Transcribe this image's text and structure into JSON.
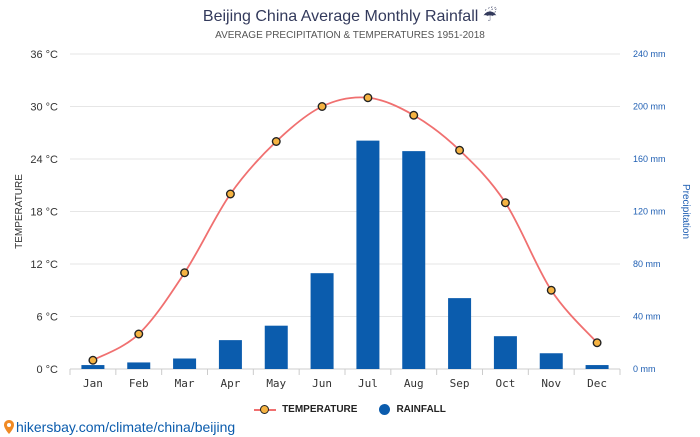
{
  "title": "Beijing China Average Monthly Rainfall ☔",
  "subtitle": "AVERAGE PRECIPITATION & TEMPERATURES 1951-2018",
  "source": "hikersbay.com/climate/china/beijing",
  "legend": {
    "temperature": "TEMPERATURE",
    "rainfall": "RAINFALL"
  },
  "colors": {
    "temperature_line": "#f07070",
    "temperature_marker": "#f5b342",
    "rainfall_bar": "#0b5cad",
    "right_axis": "#1f5fb3"
  },
  "chart_data": {
    "type": "bar+line",
    "categories": [
      "Jan",
      "Feb",
      "Mar",
      "Apr",
      "May",
      "Jun",
      "Jul",
      "Aug",
      "Sep",
      "Oct",
      "Nov",
      "Dec"
    ],
    "series": [
      {
        "name": "TEMPERATURE",
        "type": "line",
        "axis": "left",
        "unit": "°C",
        "values": [
          1,
          4,
          11,
          20,
          26,
          30,
          31,
          29,
          25,
          19,
          9,
          3
        ]
      },
      {
        "name": "RAINFALL",
        "type": "bar",
        "axis": "right",
        "unit": "mm",
        "values": [
          3,
          5,
          8,
          22,
          33,
          73,
          174,
          166,
          54,
          25,
          12,
          3
        ]
      }
    ],
    "ylabel_left": "TEMPERATURE",
    "ylabel_right": "Precipitation",
    "ylim_left": [
      0,
      36
    ],
    "ylim_right": [
      0,
      240
    ],
    "yticks_left": [
      "0 °C",
      "6 °C",
      "12 °C",
      "18 °C",
      "24 °C",
      "30 °C",
      "36 °C"
    ],
    "yticks_right": [
      "0 mm",
      "40 mm",
      "80 mm",
      "120 mm",
      "160 mm",
      "200 mm",
      "240 mm"
    ],
    "grid": true,
    "legend_position": "bottom-center"
  }
}
